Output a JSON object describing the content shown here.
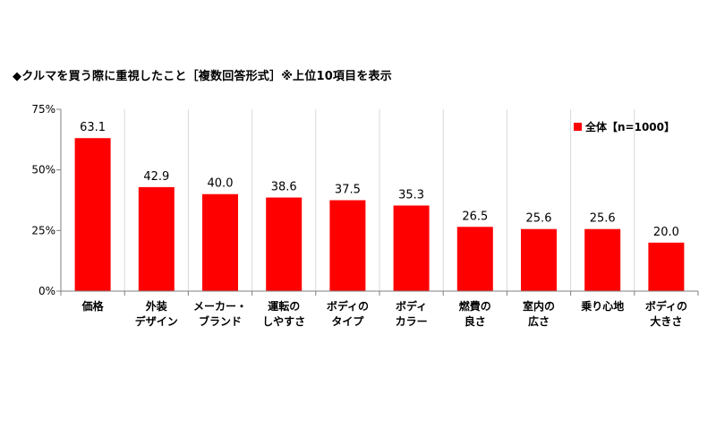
{
  "chart_data": {
    "type": "bar",
    "title": "◆クルマを買う際に重視したこと［複数回答形式］※上位10項目を表示",
    "categories": [
      [
        "価格"
      ],
      [
        "外装",
        "デザイン"
      ],
      [
        "メーカー・",
        "ブランド"
      ],
      [
        "運転の",
        "しやすさ"
      ],
      [
        "ボディの",
        "タイプ"
      ],
      [
        "ボディ",
        "カラー"
      ],
      [
        "燃費の",
        "良さ"
      ],
      [
        "室内の",
        "広さ"
      ],
      [
        "乗り心地"
      ],
      [
        "ボディの",
        "大きさ"
      ]
    ],
    "series": [
      {
        "name": "全体【n=1000】",
        "values": [
          63.1,
          42.9,
          40.0,
          38.6,
          37.5,
          35.3,
          26.5,
          25.6,
          25.6,
          20.0
        ]
      }
    ],
    "value_labels": [
      "63.1",
      "42.9",
      "40.0",
      "38.6",
      "37.5",
      "35.3",
      "26.5",
      "25.6",
      "25.6",
      "20.0"
    ],
    "ylim": [
      0,
      75
    ],
    "yticks": [
      0,
      25,
      50,
      75
    ],
    "ytick_labels": [
      "0%",
      "25%",
      "50%",
      "75%"
    ],
    "grid": "vertical-category-dividers",
    "legend_position": "top-right",
    "colors": {
      "bar": "#ff0000",
      "axis": "#808080",
      "grid": "#d9d9d9"
    }
  }
}
